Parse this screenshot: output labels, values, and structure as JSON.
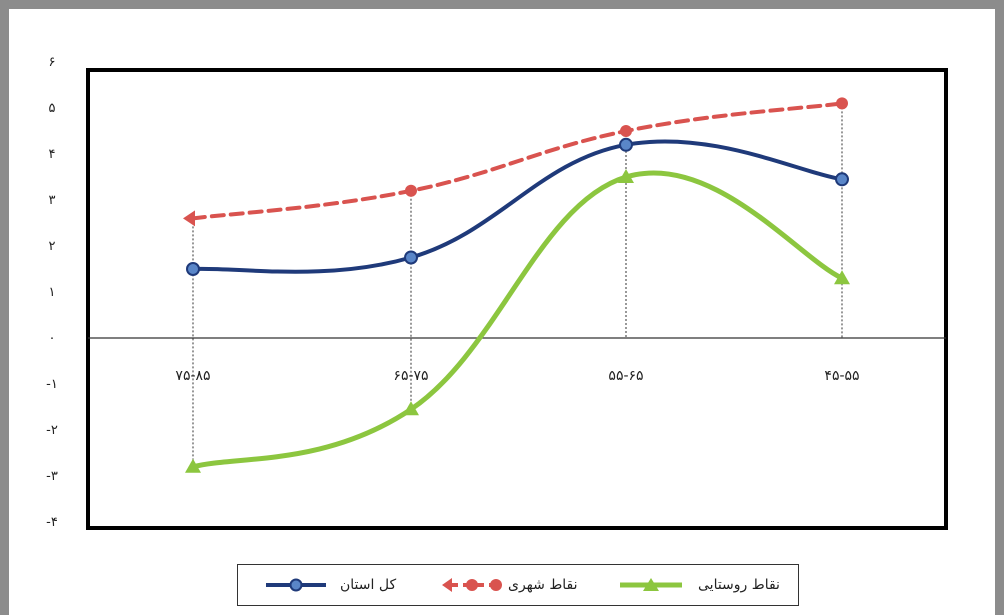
{
  "chart_data": {
    "type": "line",
    "categories": [
      "۷۵-۸۵",
      "۶۵-۷۵",
      "۵۵-۶۵",
      "۴۵-۵۵"
    ],
    "ylim": [
      -4,
      6
    ],
    "yticks": [
      "-۴",
      "-۳",
      "-۲",
      "-۱",
      "۰",
      "۱",
      "۲",
      "۳",
      "۴",
      "۵",
      "۶"
    ],
    "grid": false,
    "legend_position": "bottom",
    "series": [
      {
        "name": "کل استان",
        "values": [
          1.5,
          1.75,
          4.2,
          3.45
        ],
        "color": "#1f3a7a",
        "marker": "circle",
        "dash": false
      },
      {
        "name": "نقاط شهری",
        "values": [
          2.6,
          3.2,
          4.5,
          5.1
        ],
        "color": "#d9534f",
        "marker": "circle",
        "dash": true
      },
      {
        "name": "نقاط روستایی",
        "values": [
          -2.8,
          -1.55,
          3.5,
          1.3
        ],
        "color": "#8cc63f",
        "marker": "triangle",
        "dash": false
      }
    ]
  }
}
